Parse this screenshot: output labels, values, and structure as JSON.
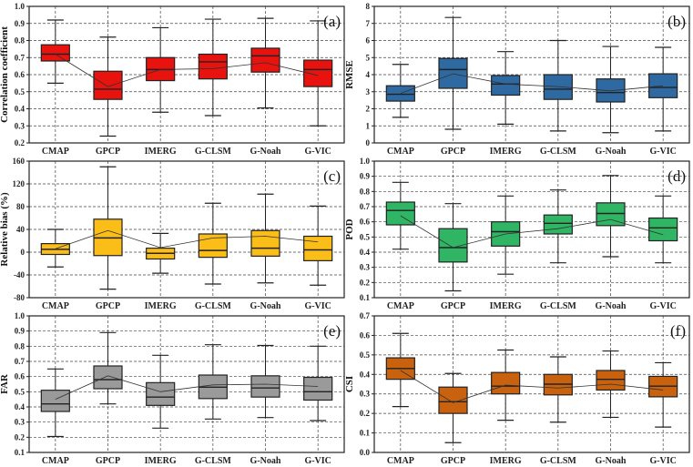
{
  "chart_data": [
    {
      "type": "box",
      "panel_label": "(a)",
      "ylabel": "Correlation coefficient",
      "ylim": [
        0.2,
        1.0
      ],
      "yticks": [
        "0.2",
        "0.3",
        "0.4",
        "0.5",
        "0.6",
        "0.7",
        "0.8",
        "0.9",
        "1.0"
      ],
      "color": "#e8120f",
      "categories": [
        "CMAP",
        "GPCP",
        "IMERG",
        "G-CLSM",
        "G-Noah",
        "G-VIC"
      ],
      "boxes": [
        {
          "min": 0.55,
          "q1": 0.68,
          "median": 0.72,
          "q3": 0.775,
          "max": 0.92,
          "mean": 0.72
        },
        {
          "min": 0.24,
          "q1": 0.455,
          "median": 0.515,
          "q3": 0.62,
          "max": 0.82,
          "mean": 0.53
        },
        {
          "min": 0.38,
          "q1": 0.565,
          "median": 0.63,
          "q3": 0.7,
          "max": 0.875,
          "mean": 0.63
        },
        {
          "min": 0.36,
          "q1": 0.575,
          "median": 0.675,
          "q3": 0.72,
          "max": 0.925,
          "mean": 0.635
        },
        {
          "min": 0.405,
          "q1": 0.615,
          "median": 0.71,
          "q3": 0.755,
          "max": 0.93,
          "mean": 0.67
        },
        {
          "min": 0.3,
          "q1": 0.53,
          "median": 0.63,
          "q3": 0.685,
          "max": 0.915,
          "mean": 0.595
        }
      ]
    },
    {
      "type": "box",
      "panel_label": "(b)",
      "ylabel": "RMSE",
      "ylim": [
        0,
        8
      ],
      "yticks": [
        "0",
        "1",
        "2",
        "3",
        "4",
        "5",
        "6",
        "7",
        "8"
      ],
      "color": "#2e6aa1",
      "categories": [
        "CMAP",
        "GPCP",
        "IMERG",
        "G-CLSM",
        "G-Noah",
        "G-VIC"
      ],
      "boxes": [
        {
          "min": 1.5,
          "q1": 2.45,
          "median": 2.85,
          "q3": 3.35,
          "max": 4.6,
          "mean": 2.9
        },
        {
          "min": 0.8,
          "q1": 3.2,
          "median": 4.3,
          "q3": 4.95,
          "max": 7.35,
          "mean": 4.05
        },
        {
          "min": 1.1,
          "q1": 2.8,
          "median": 3.45,
          "q3": 3.95,
          "max": 5.35,
          "mean": 3.45
        },
        {
          "min": 0.7,
          "q1": 2.55,
          "median": 3.15,
          "q3": 4.0,
          "max": 6.0,
          "mean": 3.3
        },
        {
          "min": 0.6,
          "q1": 2.4,
          "median": 2.95,
          "q3": 3.75,
          "max": 5.65,
          "mean": 3.05
        },
        {
          "min": 0.7,
          "q1": 2.65,
          "median": 3.25,
          "q3": 4.05,
          "max": 5.6,
          "mean": 3.35
        }
      ]
    },
    {
      "type": "box",
      "panel_label": "(c)",
      "ylabel": "Relative bias (%)",
      "ylim": [
        -80,
        160
      ],
      "yticks": [
        "-80",
        "-40",
        "0",
        "40",
        "80",
        "120",
        "160"
      ],
      "color": "#fbbd18",
      "categories": [
        "CMAP",
        "GPCP",
        "IMERG",
        "G-CLSM",
        "G-Noah",
        "G-VIC"
      ],
      "boxes": [
        {
          "min": -26,
          "q1": -4,
          "median": 5,
          "q3": 15,
          "max": 40,
          "mean": 6
        },
        {
          "min": -65,
          "q1": -6,
          "median": 25,
          "q3": 58,
          "max": 150,
          "mean": 38
        },
        {
          "min": -37,
          "q1": -12,
          "median": -2,
          "q3": 7,
          "max": 33,
          "mean": 8
        },
        {
          "min": -56,
          "q1": -9,
          "median": 3,
          "q3": 32,
          "max": 86,
          "mean": 25
        },
        {
          "min": -54,
          "q1": -7,
          "median": 7,
          "q3": 38,
          "max": 102,
          "mean": 28
        },
        {
          "min": -58,
          "q1": -15,
          "median": 4,
          "q3": 28,
          "max": 81,
          "mean": 18
        }
      ]
    },
    {
      "type": "box",
      "panel_label": "(d)",
      "ylabel": "POD",
      "ylim": [
        0.1,
        1.0
      ],
      "yticks": [
        "0.1",
        "0.2",
        "0.3",
        "0.4",
        "0.5",
        "0.6",
        "0.7",
        "0.8",
        "0.9",
        "1.0"
      ],
      "color": "#2fb564",
      "categories": [
        "CMAP",
        "GPCP",
        "IMERG",
        "G-CLSM",
        "G-Noah",
        "G-VIC"
      ],
      "boxes": [
        {
          "min": 0.42,
          "q1": 0.58,
          "median": 0.675,
          "q3": 0.73,
          "max": 0.86,
          "mean": 0.64
        },
        {
          "min": 0.145,
          "q1": 0.335,
          "median": 0.43,
          "q3": 0.555,
          "max": 0.72,
          "mean": 0.43
        },
        {
          "min": 0.255,
          "q1": 0.44,
          "median": 0.535,
          "q3": 0.6,
          "max": 0.77,
          "mean": 0.52
        },
        {
          "min": 0.33,
          "q1": 0.52,
          "median": 0.59,
          "q3": 0.645,
          "max": 0.81,
          "mean": 0.555
        },
        {
          "min": 0.37,
          "q1": 0.575,
          "median": 0.655,
          "q3": 0.725,
          "max": 0.905,
          "mean": 0.615
        },
        {
          "min": 0.33,
          "q1": 0.475,
          "median": 0.56,
          "q3": 0.625,
          "max": 0.77,
          "mean": 0.515
        }
      ]
    },
    {
      "type": "box",
      "panel_label": "(e)",
      "ylabel": "FAR",
      "ylim": [
        0.1,
        1.0
      ],
      "yticks": [
        "0.1",
        "0.2",
        "0.3",
        "0.4",
        "0.5",
        "0.6",
        "0.7",
        "0.8",
        "0.9",
        "1.0"
      ],
      "color": "#9a9a9a",
      "categories": [
        "CMAP",
        "GPCP",
        "IMERG",
        "G-CLSM",
        "G-Noah",
        "G-VIC"
      ],
      "boxes": [
        {
          "min": 0.205,
          "q1": 0.37,
          "median": 0.42,
          "q3": 0.51,
          "max": 0.65,
          "mean": 0.45
        },
        {
          "min": 0.42,
          "q1": 0.52,
          "median": 0.58,
          "q3": 0.67,
          "max": 0.89,
          "mean": 0.605
        },
        {
          "min": 0.26,
          "q1": 0.41,
          "median": 0.465,
          "q3": 0.56,
          "max": 0.74,
          "mean": 0.5
        },
        {
          "min": 0.32,
          "q1": 0.455,
          "median": 0.53,
          "q3": 0.61,
          "max": 0.81,
          "mean": 0.545
        },
        {
          "min": 0.33,
          "q1": 0.465,
          "median": 0.525,
          "q3": 0.605,
          "max": 0.805,
          "mean": 0.55
        },
        {
          "min": 0.31,
          "q1": 0.445,
          "median": 0.5,
          "q3": 0.595,
          "max": 0.8,
          "mean": 0.535
        }
      ]
    },
    {
      "type": "box",
      "panel_label": "(f)",
      "ylabel": "CSI",
      "ylim": [
        0.0,
        0.7
      ],
      "yticks": [
        "0.0",
        "0.1",
        "0.2",
        "0.3",
        "0.4",
        "0.5",
        "0.6",
        "0.7"
      ],
      "color": "#c8620e",
      "categories": [
        "CMAP",
        "GPCP",
        "IMERG",
        "G-CLSM",
        "G-Noah",
        "G-VIC"
      ],
      "boxes": [
        {
          "min": 0.235,
          "q1": 0.375,
          "median": 0.43,
          "q3": 0.485,
          "max": 0.61,
          "mean": 0.42
        },
        {
          "min": 0.05,
          "q1": 0.2,
          "median": 0.26,
          "q3": 0.335,
          "max": 0.405,
          "mean": 0.255
        },
        {
          "min": 0.165,
          "q1": 0.3,
          "median": 0.34,
          "q3": 0.41,
          "max": 0.525,
          "mean": 0.345
        },
        {
          "min": 0.155,
          "q1": 0.295,
          "median": 0.35,
          "q3": 0.4,
          "max": 0.49,
          "mean": 0.33
        },
        {
          "min": 0.18,
          "q1": 0.32,
          "median": 0.375,
          "q3": 0.42,
          "max": 0.52,
          "mean": 0.35
        },
        {
          "min": 0.13,
          "q1": 0.285,
          "median": 0.34,
          "q3": 0.39,
          "max": 0.46,
          "mean": 0.32
        }
      ]
    }
  ]
}
